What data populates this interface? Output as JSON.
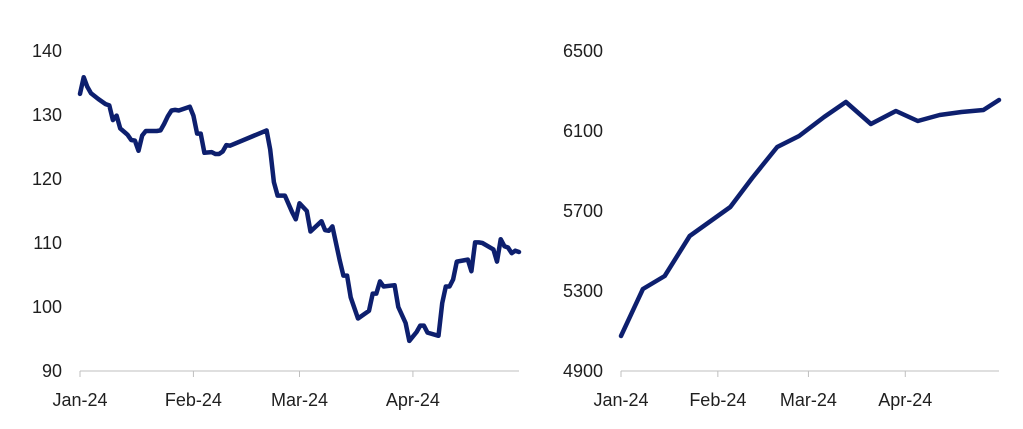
{
  "colors": {
    "series": "#0d1f6e",
    "axis": "#bfbfbf",
    "text": "#1f1f1f"
  },
  "chart_data": [
    {
      "type": "line",
      "title": "",
      "xlabel": "",
      "ylabel": "",
      "grid": false,
      "ylim": [
        90,
        140
      ],
      "yticks": [
        "140",
        "130",
        "120",
        "110",
        "100",
        "90"
      ],
      "xlim": [
        "2024-01-01",
        "2024-04-30"
      ],
      "xticks": [
        {
          "date": "2024-01-01",
          "label": "Jan-24"
        },
        {
          "date": "2024-02-01",
          "label": "Feb-24"
        },
        {
          "date": "2024-03-01",
          "label": "Mar-24"
        },
        {
          "date": "2024-04-01",
          "label": "Apr-24"
        }
      ],
      "series": [
        {
          "points": [
            [
              "2024-01-01",
              133.3
            ],
            [
              "2024-01-02",
              135.9
            ],
            [
              "2024-01-03",
              134.4
            ],
            [
              "2024-01-04",
              133.4
            ],
            [
              "2024-01-06",
              132.5
            ],
            [
              "2024-01-08",
              131.7
            ],
            [
              "2024-01-09",
              131.5
            ],
            [
              "2024-01-10",
              129.2
            ],
            [
              "2024-01-11",
              129.9
            ],
            [
              "2024-01-12",
              127.9
            ],
            [
              "2024-01-14",
              126.9
            ],
            [
              "2024-01-15",
              126.1
            ],
            [
              "2024-01-16",
              126.0
            ],
            [
              "2024-01-17",
              124.4
            ],
            [
              "2024-01-18",
              126.8
            ],
            [
              "2024-01-19",
              127.5
            ],
            [
              "2024-01-22",
              127.5
            ],
            [
              "2024-01-23",
              127.6
            ],
            [
              "2024-01-24",
              128.6
            ],
            [
              "2024-01-25",
              129.8
            ],
            [
              "2024-01-26",
              130.7
            ],
            [
              "2024-01-27",
              130.8
            ],
            [
              "2024-01-28",
              130.7
            ],
            [
              "2024-01-31",
              131.3
            ],
            [
              "2024-02-01",
              129.9
            ],
            [
              "2024-02-02",
              127.1
            ],
            [
              "2024-02-03",
              127.1
            ],
            [
              "2024-02-04",
              124.1
            ],
            [
              "2024-02-06",
              124.2
            ],
            [
              "2024-02-07",
              123.9
            ],
            [
              "2024-02-08",
              123.9
            ],
            [
              "2024-02-09",
              124.3
            ],
            [
              "2024-02-10",
              125.3
            ],
            [
              "2024-02-11",
              125.2
            ],
            [
              "2024-02-21",
              127.6
            ],
            [
              "2024-02-22",
              124.6
            ],
            [
              "2024-02-23",
              119.5
            ],
            [
              "2024-02-24",
              117.4
            ],
            [
              "2024-02-26",
              117.4
            ],
            [
              "2024-02-28",
              114.8
            ],
            [
              "2024-02-29",
              113.7
            ],
            [
              "2024-03-01",
              116.2
            ],
            [
              "2024-03-03",
              115.0
            ],
            [
              "2024-03-04",
              111.8
            ],
            [
              "2024-03-07",
              113.4
            ],
            [
              "2024-03-08",
              112.0
            ],
            [
              "2024-03-09",
              111.9
            ],
            [
              "2024-03-10",
              112.6
            ],
            [
              "2024-03-12",
              107.3
            ],
            [
              "2024-03-13",
              104.9
            ],
            [
              "2024-03-14",
              104.9
            ],
            [
              "2024-03-15",
              101.5
            ],
            [
              "2024-03-17",
              98.2
            ],
            [
              "2024-03-20",
              99.4
            ],
            [
              "2024-03-21",
              102.1
            ],
            [
              "2024-03-22",
              102.1
            ],
            [
              "2024-03-23",
              104.0
            ],
            [
              "2024-03-24",
              103.2
            ],
            [
              "2024-03-27",
              103.4
            ],
            [
              "2024-03-28",
              100.0
            ],
            [
              "2024-03-30",
              97.5
            ],
            [
              "2024-03-31",
              94.7
            ],
            [
              "2024-04-02",
              96.1
            ],
            [
              "2024-04-03",
              97.1
            ],
            [
              "2024-04-04",
              97.1
            ],
            [
              "2024-04-05",
              96.0
            ],
            [
              "2024-04-08",
              95.5
            ],
            [
              "2024-04-09",
              100.6
            ],
            [
              "2024-04-10",
              103.2
            ],
            [
              "2024-04-11",
              103.2
            ],
            [
              "2024-04-12",
              104.3
            ],
            [
              "2024-04-13",
              107.1
            ],
            [
              "2024-04-16",
              107.4
            ],
            [
              "2024-04-17",
              105.6
            ],
            [
              "2024-04-18",
              110.1
            ],
            [
              "2024-04-19",
              110.1
            ],
            [
              "2024-04-20",
              110.0
            ],
            [
              "2024-04-23",
              109.0
            ],
            [
              "2024-04-24",
              107.1
            ],
            [
              "2024-04-25",
              110.6
            ],
            [
              "2024-04-26",
              109.5
            ],
            [
              "2024-04-27",
              109.3
            ],
            [
              "2024-04-28",
              108.4
            ],
            [
              "2024-04-29",
              108.8
            ],
            [
              "2024-04-30",
              108.6
            ]
          ]
        }
      ]
    },
    {
      "type": "line",
      "title": "",
      "xlabel": "",
      "ylabel": "",
      "grid": false,
      "ylim": [
        4900,
        6500
      ],
      "yticks": [
        "6500",
        "6100",
        "5700",
        "5300",
        "4900"
      ],
      "xlim": [
        "2024-01-01",
        "2024-05-01"
      ],
      "xticks": [
        {
          "date": "2024-01-01",
          "label": "Jan-24"
        },
        {
          "date": "2024-02-01",
          "label": "Feb-24"
        },
        {
          "date": "2024-03-01",
          "label": "Mar-24"
        },
        {
          "date": "2024-04-01",
          "label": "Apr-24"
        }
      ],
      "series": [
        {
          "points": [
            [
              "2024-01-01",
              5075
            ],
            [
              "2024-01-08",
              5310
            ],
            [
              "2024-01-15",
              5375
            ],
            [
              "2024-01-23",
              5575
            ],
            [
              "2024-02-05",
              5720
            ],
            [
              "2024-02-12",
              5865
            ],
            [
              "2024-02-20",
              6020
            ],
            [
              "2024-02-27",
              6075
            ],
            [
              "2024-03-06",
              6170
            ],
            [
              "2024-03-13",
              6245
            ],
            [
              "2024-03-21",
              6135
            ],
            [
              "2024-03-29",
              6200
            ],
            [
              "2024-04-05",
              6150
            ],
            [
              "2024-04-12",
              6180
            ],
            [
              "2024-04-19",
              6195
            ],
            [
              "2024-04-26",
              6205
            ],
            [
              "2024-05-01",
              6255
            ]
          ]
        }
      ]
    }
  ]
}
